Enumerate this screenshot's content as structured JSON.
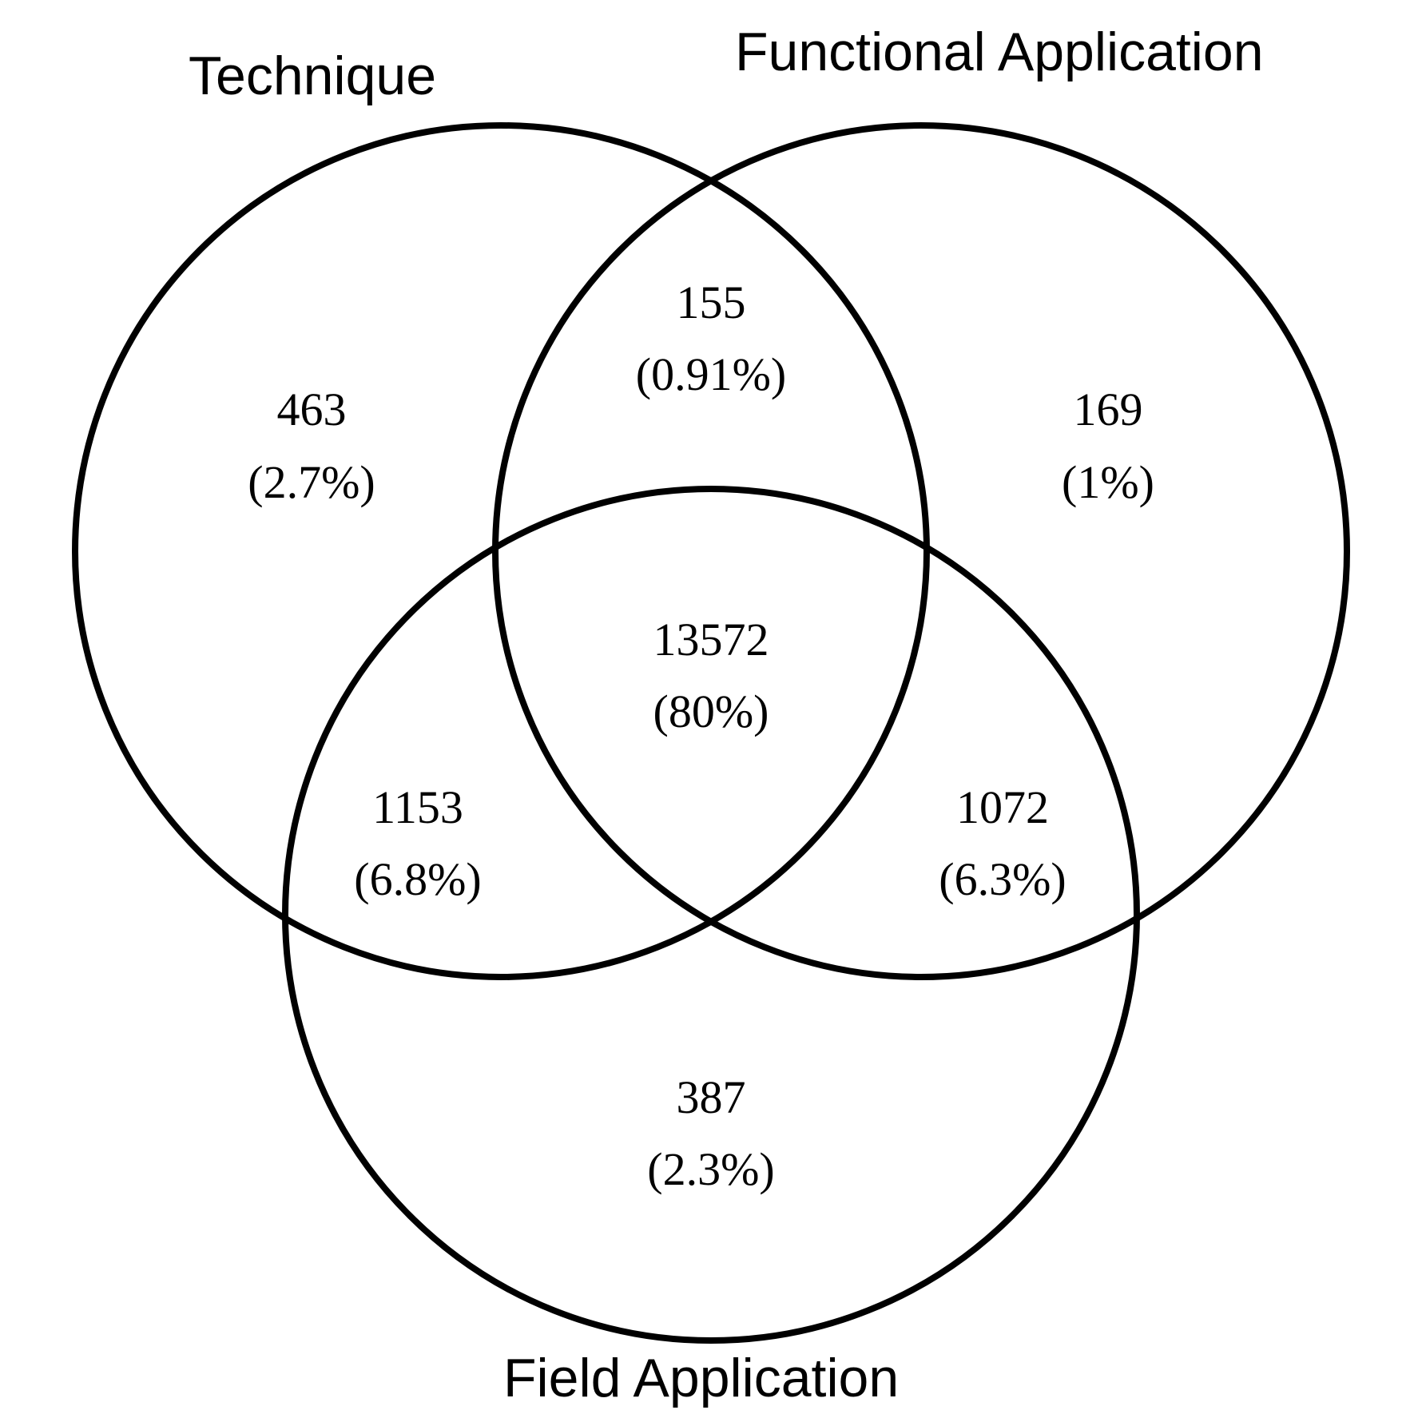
{
  "diagram": {
    "type": "venn",
    "sets": [
      {
        "name": "Technique"
      },
      {
        "name": "Functional Application"
      },
      {
        "name": "Field Application"
      }
    ],
    "regions": {
      "technique_only": {
        "count": "463",
        "percent": "(2.7%)"
      },
      "functional_only": {
        "count": "169",
        "percent": "(1%)"
      },
      "technique_functional": {
        "count": "155",
        "percent": "(0.91%)"
      },
      "all_three": {
        "count": "13572",
        "percent": "(80%)"
      },
      "technique_field": {
        "count": "1153",
        "percent": "(6.8%)"
      },
      "functional_field": {
        "count": "1072",
        "percent": "(6.3%)"
      },
      "field_only": {
        "count": "387",
        "percent": "(2.3%)"
      }
    },
    "stroke_color": "#000000",
    "background_color": "#ffffff"
  }
}
